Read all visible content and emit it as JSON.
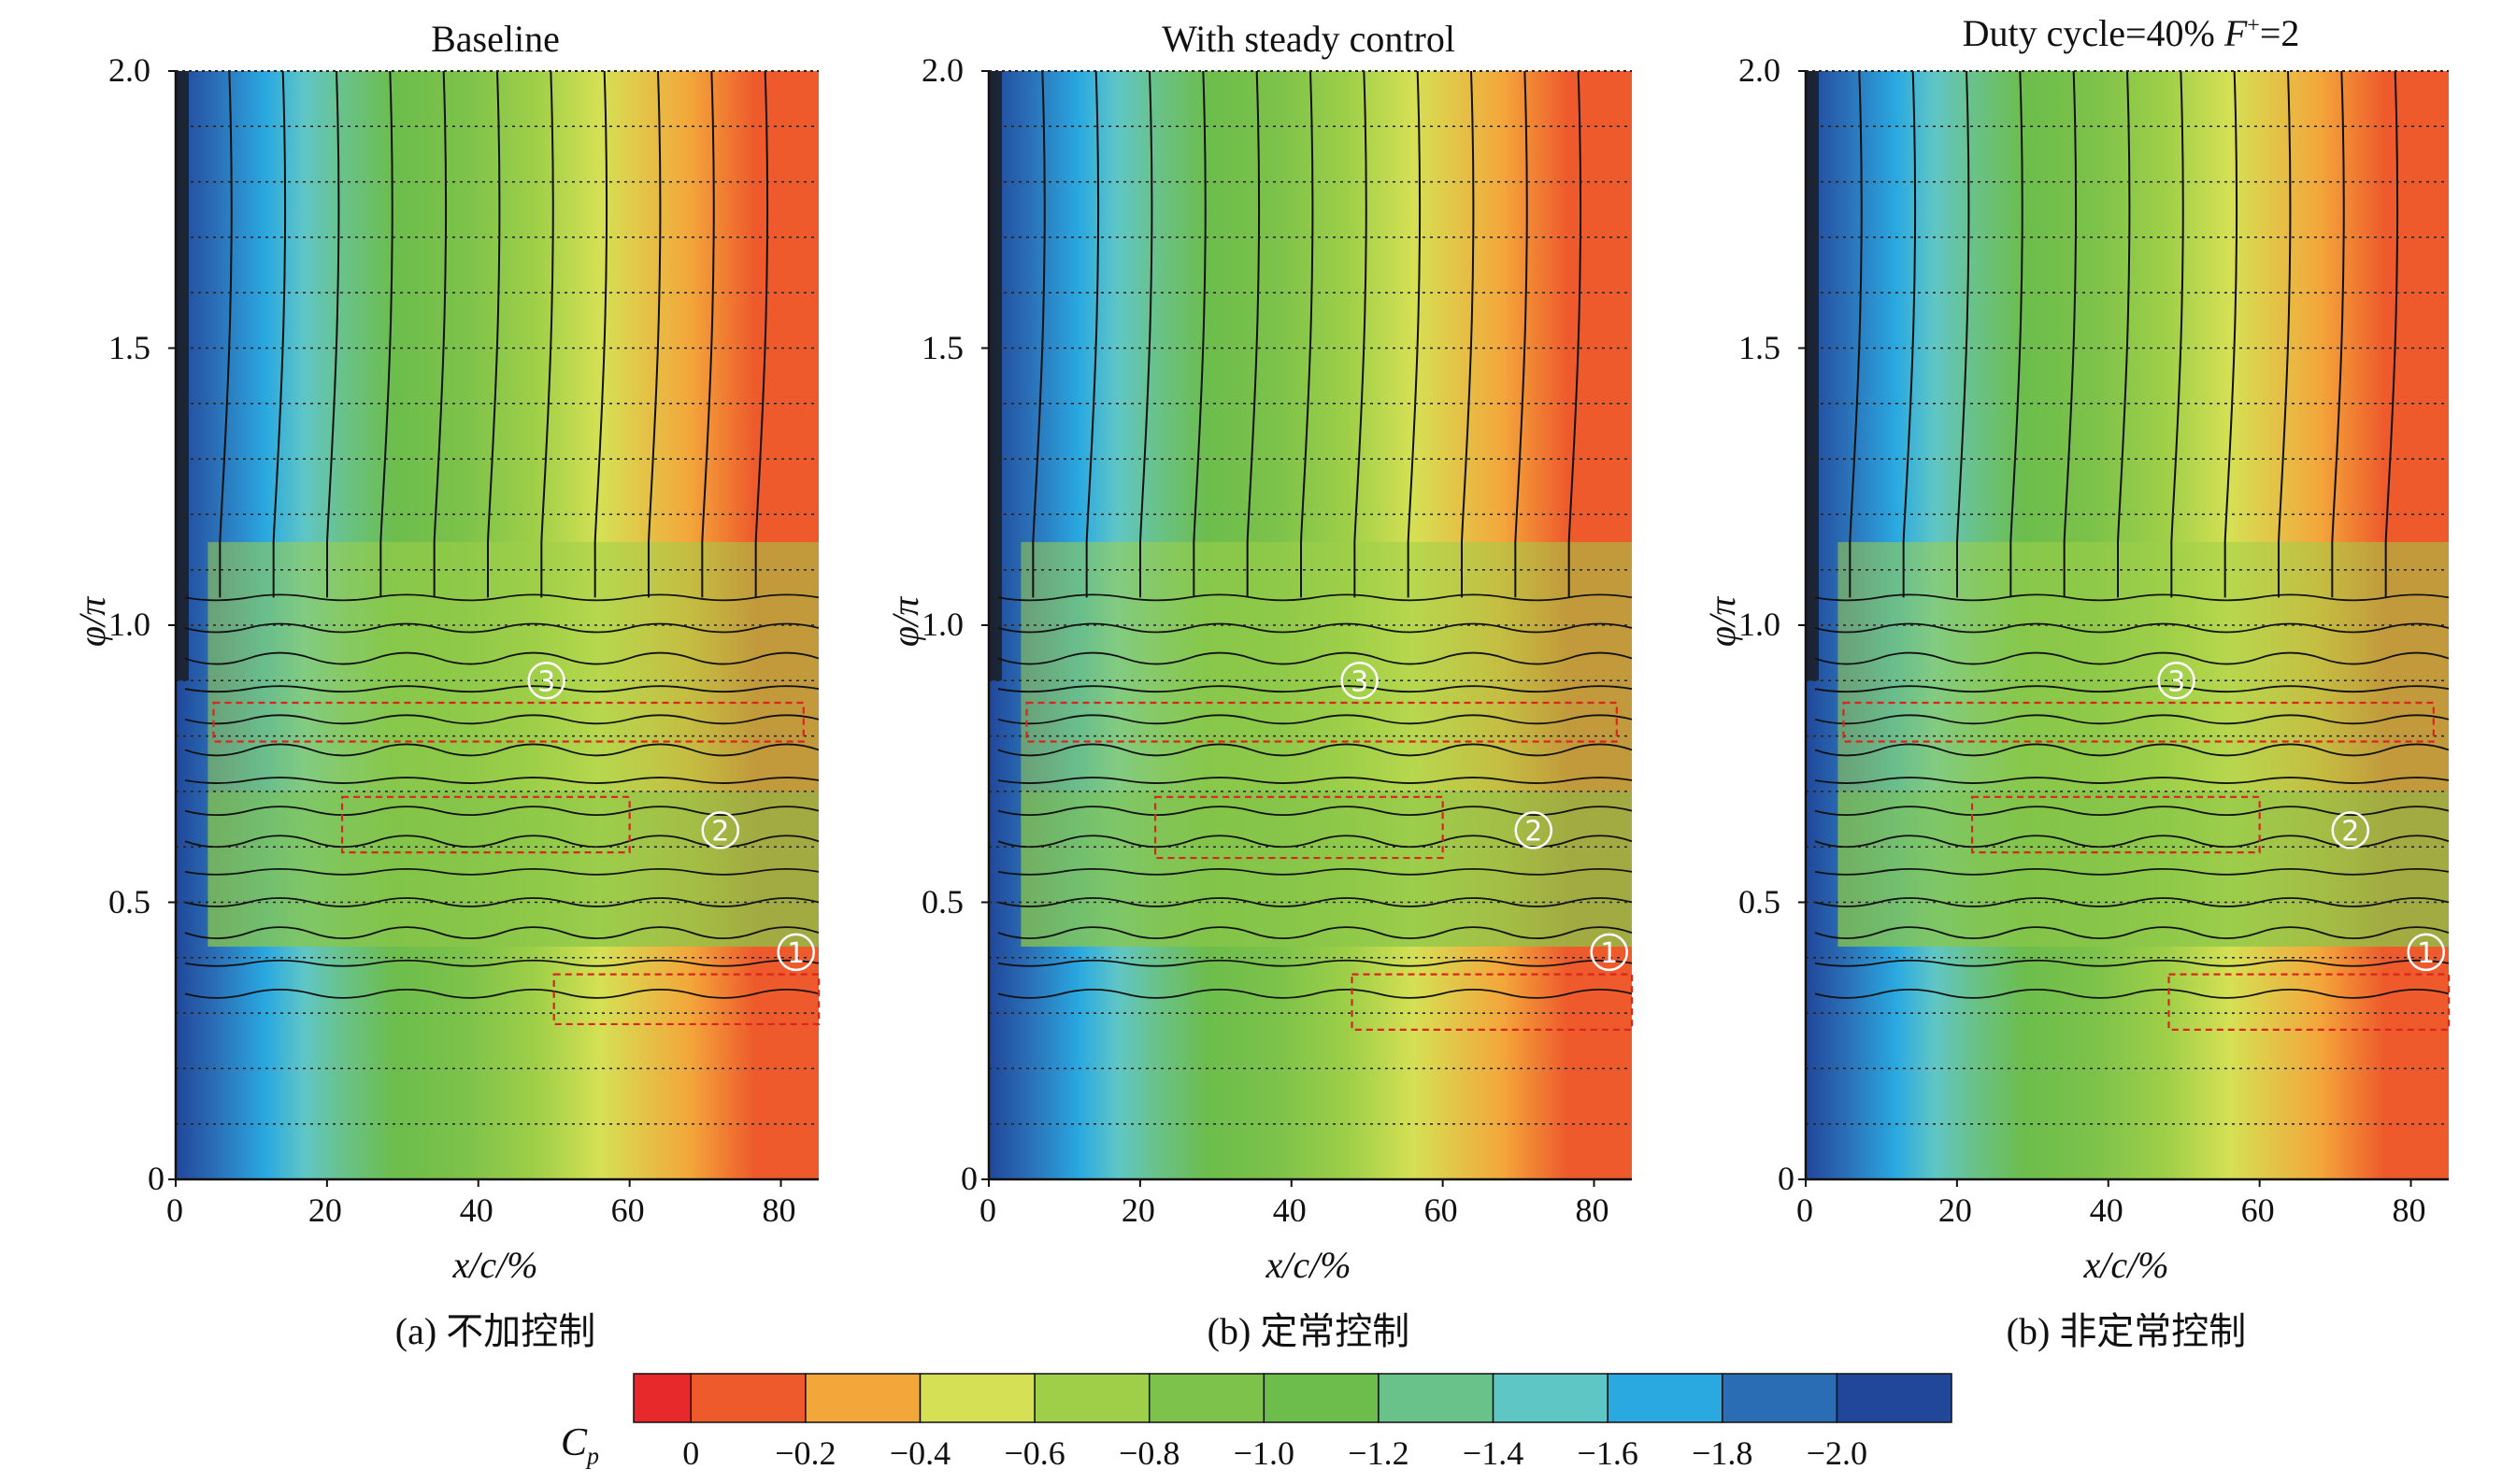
{
  "panels": [
    {
      "title": "Baseline",
      "caption": "(a) 不加控制",
      "xlabel": "x/c/%",
      "ylabel": "φ/π",
      "markers": [
        "①",
        "②",
        "③"
      ]
    },
    {
      "title": "With steady control",
      "caption": "(b) 定常控制",
      "xlabel": "x/c/%",
      "ylabel": "φ/π",
      "markers": [
        "①",
        "②",
        "③"
      ]
    },
    {
      "title": "Duty cycle=40% F⁺=2",
      "caption": "(b) 非定常控制",
      "xlabel": "x/c/%",
      "ylabel": "φ/π",
      "markers": [
        "①",
        "②",
        "③"
      ]
    }
  ],
  "colorbar": {
    "label": "C",
    "label_sub": "p",
    "ticks": [
      "0",
      "−0.2",
      "−0.4",
      "−0.6",
      "−0.8",
      "−1.0",
      "−1.2",
      "−1.4",
      "−1.6",
      "−1.8",
      "−2.0"
    ],
    "colors": [
      "#e8292b",
      "#ee5a2c",
      "#f3a63a",
      "#d5e054",
      "#9fcf48",
      "#7dc24a",
      "#6cbd4c",
      "#69c28a",
      "#5fc6c6",
      "#2aa8e0",
      "#2a6db5",
      "#21479a"
    ]
  },
  "chart_data": [
    {
      "type": "heatmap",
      "title": "Baseline",
      "xlabel": "x/c/%",
      "ylabel": "φ/π",
      "xlim": [
        0,
        85
      ],
      "ylim": [
        0,
        2.0
      ],
      "xticks": [
        0,
        20,
        40,
        60,
        80
      ],
      "yticks": [
        0,
        0.5,
        1.0,
        1.5,
        2.0
      ],
      "ytick_labels": [
        "0",
        "0.5",
        "1.0",
        "1.5",
        "2.0"
      ],
      "xtick_labels": [
        "0",
        "20",
        "40",
        "60",
        "80"
      ],
      "grid": "horizontal dotted",
      "cp_range": [
        -2.0,
        0
      ],
      "regions": [
        {
          "marker": "①",
          "x": [
            50,
            85
          ],
          "y": [
            0.28,
            0.37
          ]
        },
        {
          "marker": "②",
          "x": [
            22,
            60
          ],
          "y": [
            0.59,
            0.69
          ]
        },
        {
          "marker": "③",
          "x": [
            5,
            83
          ],
          "y": [
            0.79,
            0.86
          ]
        }
      ]
    },
    {
      "type": "heatmap",
      "title": "With steady control",
      "xlabel": "x/c/%",
      "ylabel": "φ/π",
      "xlim": [
        0,
        85
      ],
      "ylim": [
        0,
        2.0
      ],
      "xticks": [
        0,
        20,
        40,
        60,
        80
      ],
      "yticks": [
        0,
        0.5,
        1.0,
        1.5,
        2.0
      ],
      "ytick_labels": [
        "0",
        "0.5",
        "1.0",
        "1.5",
        "2.0"
      ],
      "xtick_labels": [
        "0",
        "20",
        "40",
        "60",
        "80"
      ],
      "grid": "horizontal dotted",
      "cp_range": [
        -2.0,
        0
      ],
      "regions": [
        {
          "marker": "①",
          "x": [
            48,
            85
          ],
          "y": [
            0.27,
            0.37
          ]
        },
        {
          "marker": "②",
          "x": [
            22,
            60
          ],
          "y": [
            0.58,
            0.69
          ]
        },
        {
          "marker": "③",
          "x": [
            5,
            83
          ],
          "y": [
            0.79,
            0.86
          ]
        }
      ]
    },
    {
      "type": "heatmap",
      "title": "Duty cycle=40% F⁺=2",
      "xlabel": "x/c/%",
      "ylabel": "φ/π",
      "xlim": [
        0,
        85
      ],
      "ylim": [
        0,
        2.0
      ],
      "xticks": [
        0,
        20,
        40,
        60,
        80
      ],
      "yticks": [
        0,
        0.5,
        1.0,
        1.5,
        2.0
      ],
      "ytick_labels": [
        "0",
        "0.5",
        "1.0",
        "1.5",
        "2.0"
      ],
      "xtick_labels": [
        "0",
        "20",
        "40",
        "60",
        "80"
      ],
      "grid": "horizontal dotted",
      "cp_range": [
        -2.0,
        0
      ],
      "regions": [
        {
          "marker": "①",
          "x": [
            48,
            85
          ],
          "y": [
            0.27,
            0.37
          ]
        },
        {
          "marker": "②",
          "x": [
            22,
            60
          ],
          "y": [
            0.59,
            0.69
          ]
        },
        {
          "marker": "③",
          "x": [
            5,
            83
          ],
          "y": [
            0.79,
            0.86
          ]
        }
      ]
    }
  ]
}
